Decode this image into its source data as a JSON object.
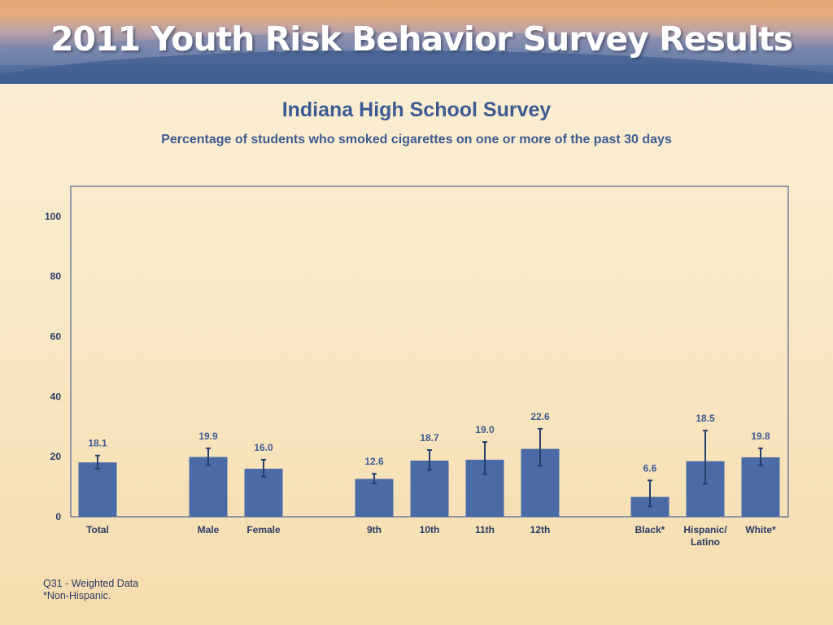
{
  "banner": {
    "title": "2011 Youth Risk Behavior Survey Results"
  },
  "chart_data": {
    "type": "bar",
    "title": "Indiana High School Survey",
    "subtitle": "Percentage of students who smoked cigarettes on one or more of the past 30 days",
    "xlabel": "",
    "ylabel": "",
    "ylim": [
      0,
      110
    ],
    "yticks": [
      0,
      20,
      40,
      60,
      80,
      100
    ],
    "grid": false,
    "categories": [
      "Total",
      "Male",
      "Female",
      "9th",
      "10th",
      "11th",
      "12th",
      "Black*",
      "Hispanic/\nLatino",
      "White*"
    ],
    "values": [
      18.1,
      19.9,
      16.0,
      12.6,
      18.7,
      19.0,
      22.6,
      6.6,
      18.5,
      19.8
    ],
    "value_labels": [
      "18.1",
      "19.9",
      "16.0",
      "12.6",
      "18.7",
      "19.0",
      "22.6",
      "6.6",
      "18.5",
      "19.8"
    ],
    "ci_lower": [
      16.0,
      17.2,
      13.4,
      11.1,
      15.6,
      14.2,
      17.0,
      3.4,
      11.0,
      17.1
    ],
    "ci_upper": [
      20.4,
      22.8,
      19.0,
      14.3,
      22.2,
      24.9,
      29.3,
      12.1,
      28.7,
      22.8
    ],
    "bar_color": "#4a6ba6",
    "error_bar_color": "#263f6e"
  },
  "footnotes": [
    "Q31 - Weighted Data",
    "*Non-Hispanic."
  ]
}
